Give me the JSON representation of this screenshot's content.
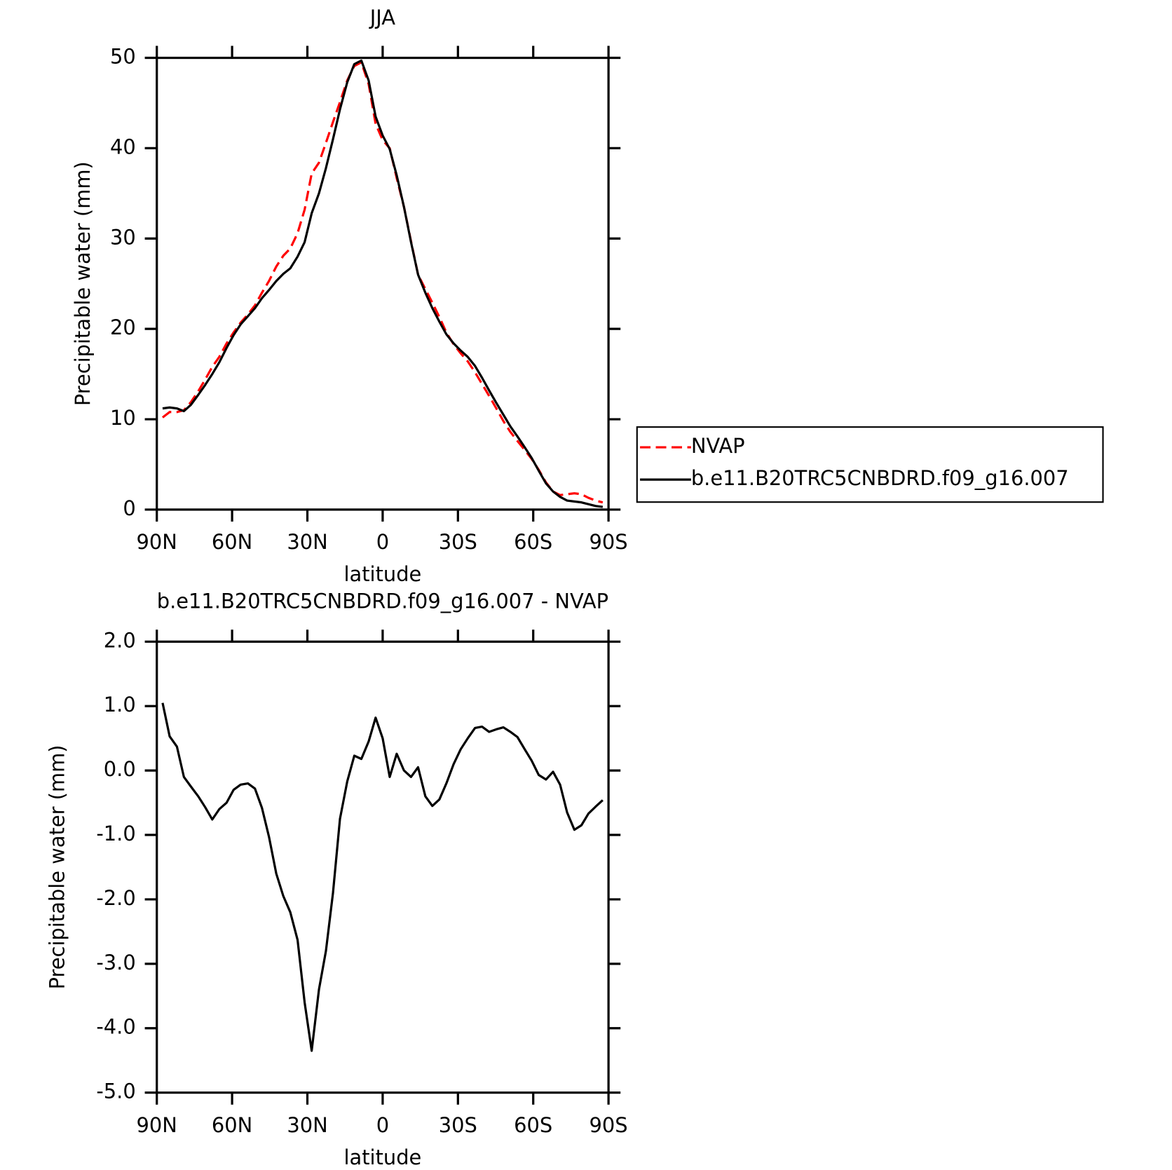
{
  "chart_data": [
    {
      "type": "line",
      "title": "JJA",
      "xlabel": "latitude",
      "ylabel": "Precipitable water (mm)",
      "x": [
        87.7,
        84.9,
        82.0,
        79.2,
        76.4,
        73.5,
        70.7,
        67.9,
        65.1,
        62.2,
        59.4,
        56.6,
        53.7,
        50.9,
        48.1,
        45.3,
        42.4,
        39.6,
        36.8,
        33.9,
        31.1,
        28.3,
        25.4,
        22.6,
        19.8,
        17.0,
        14.1,
        11.3,
        8.5,
        5.6,
        2.8,
        0.0,
        -2.8,
        -5.6,
        -8.5,
        -11.3,
        -14.1,
        -17.0,
        -19.8,
        -22.6,
        -25.4,
        -28.3,
        -31.1,
        -33.9,
        -36.8,
        -39.6,
        -42.4,
        -45.3,
        -48.1,
        -50.9,
        -53.7,
        -56.6,
        -59.4,
        -62.2,
        -65.1,
        -67.9,
        -70.7,
        -73.5,
        -76.4,
        -79.2,
        -82.0,
        -84.9,
        -87.7
      ],
      "series": [
        {
          "name": "NVAP",
          "color": "#ff0000",
          "linestyle": "dashed",
          "values": [
            10.2,
            10.8,
            10.8,
            11.0,
            11.9,
            13.1,
            14.4,
            15.8,
            16.9,
            18.4,
            19.6,
            20.7,
            21.6,
            22.6,
            24.0,
            25.3,
            26.9,
            28.1,
            28.9,
            30.6,
            33.2,
            37.2,
            38.4,
            40.6,
            42.9,
            45.1,
            47.5,
            49.1,
            49.5,
            47.1,
            42.7,
            40.9,
            40.0,
            36.7,
            33.5,
            29.7,
            26.0,
            24.4,
            22.9,
            21.3,
            19.6,
            18.3,
            17.3,
            16.4,
            15.2,
            13.9,
            12.6,
            11.2,
            9.8,
            8.6,
            7.6,
            6.6,
            5.6,
            4.4,
            3.0,
            2.0,
            1.6,
            1.7,
            1.8,
            1.7,
            1.3,
            1.0,
            0.8
          ]
        },
        {
          "name": "b.e11.B20TRC5CNBDRD.f09_g16.007",
          "color": "#000000",
          "linestyle": "solid",
          "values": [
            11.2,
            11.3,
            11.2,
            10.9,
            11.6,
            12.7,
            13.8,
            15.0,
            16.3,
            17.9,
            19.3,
            20.5,
            21.4,
            22.3,
            23.4,
            24.3,
            25.3,
            26.1,
            26.7,
            28.0,
            29.6,
            32.8,
            35.0,
            37.8,
            41.0,
            44.3,
            47.3,
            49.3,
            49.7,
            47.5,
            43.5,
            41.4,
            39.9,
            37.0,
            33.5,
            29.6,
            26.0,
            24.0,
            22.3,
            20.8,
            19.4,
            18.4,
            17.6,
            16.9,
            15.9,
            14.6,
            13.2,
            11.8,
            10.5,
            9.2,
            8.1,
            6.9,
            5.7,
            4.3,
            2.9,
            2.0,
            1.4,
            1.0,
            0.9,
            0.8,
            0.6,
            0.4,
            0.3
          ]
        }
      ],
      "xlim": [
        90,
        -90
      ],
      "xticks": [
        {
          "value": 90,
          "label": "90N"
        },
        {
          "value": 60,
          "label": "60N"
        },
        {
          "value": 30,
          "label": "30N"
        },
        0,
        {
          "value": -30,
          "label": "30S"
        },
        {
          "value": -60,
          "label": "60S"
        },
        {
          "value": -90,
          "label": "90S"
        }
      ],
      "ylim": [
        0,
        50
      ],
      "yticks": [
        0,
        10,
        20,
        30,
        40,
        50
      ],
      "legend": "right"
    },
    {
      "type": "line",
      "title": "b.e11.B20TRC5CNBDRD.f09_g16.007 - NVAP",
      "xlabel": "latitude",
      "ylabel": "Precipitable water (mm)",
      "x": [
        87.7,
        84.9,
        82.0,
        79.2,
        76.4,
        73.5,
        70.7,
        67.9,
        65.1,
        62.2,
        59.4,
        56.6,
        53.7,
        50.9,
        48.1,
        45.3,
        42.4,
        39.6,
        36.8,
        33.9,
        31.1,
        28.3,
        25.4,
        22.6,
        19.8,
        17.0,
        14.1,
        11.3,
        8.5,
        5.6,
        2.8,
        0.0,
        -2.8,
        -5.6,
        -8.5,
        -11.3,
        -14.1,
        -17.0,
        -19.8,
        -22.6,
        -25.4,
        -28.3,
        -31.1,
        -33.9,
        -36.8,
        -39.6,
        -42.4,
        -45.3,
        -48.1,
        -50.9,
        -53.7,
        -56.6,
        -59.4,
        -62.2,
        -65.1,
        -67.9,
        -70.7,
        -73.5,
        -76.4,
        -79.2,
        -82.0,
        -84.9,
        -87.7
      ],
      "color": "#000000",
      "values": [
        1.05,
        0.53,
        0.37,
        -0.1,
        -0.25,
        -0.4,
        -0.57,
        -0.76,
        -0.6,
        -0.5,
        -0.3,
        -0.22,
        -0.2,
        -0.28,
        -0.58,
        -1.03,
        -1.6,
        -1.95,
        -2.2,
        -2.63,
        -3.6,
        -4.35,
        -3.4,
        -2.8,
        -1.9,
        -0.75,
        -0.17,
        0.23,
        0.18,
        0.45,
        0.82,
        0.5,
        -0.1,
        0.26,
        0.0,
        -0.1,
        0.05,
        -0.4,
        -0.55,
        -0.45,
        -0.2,
        0.1,
        0.33,
        0.5,
        0.66,
        0.68,
        0.6,
        0.64,
        0.67,
        0.6,
        0.52,
        0.33,
        0.15,
        -0.07,
        -0.14,
        -0.02,
        -0.22,
        -0.65,
        -0.92,
        -0.85,
        -0.67,
        -0.56,
        -0.46
      ],
      "xlim": [
        90,
        -90
      ],
      "xticks": [
        {
          "value": 90,
          "label": "90N"
        },
        {
          "value": 60,
          "label": "60N"
        },
        {
          "value": 30,
          "label": "30N"
        },
        0,
        {
          "value": -30,
          "label": "30S"
        },
        {
          "value": -60,
          "label": "60S"
        },
        {
          "value": -90,
          "label": "90S"
        }
      ],
      "ylim": [
        -5,
        2
      ],
      "yticks": [
        {
          "value": -5,
          "label": "-5.0"
        },
        {
          "value": -4,
          "label": "-4.0"
        },
        {
          "value": -3,
          "label": "-3.0"
        },
        {
          "value": -2,
          "label": "-2.0"
        },
        {
          "value": -1,
          "label": "-1.0"
        },
        {
          "value": 0,
          "label": "0.0"
        },
        {
          "value": 1,
          "label": "1.0"
        },
        {
          "value": 2,
          "label": "2.0"
        }
      ]
    }
  ]
}
